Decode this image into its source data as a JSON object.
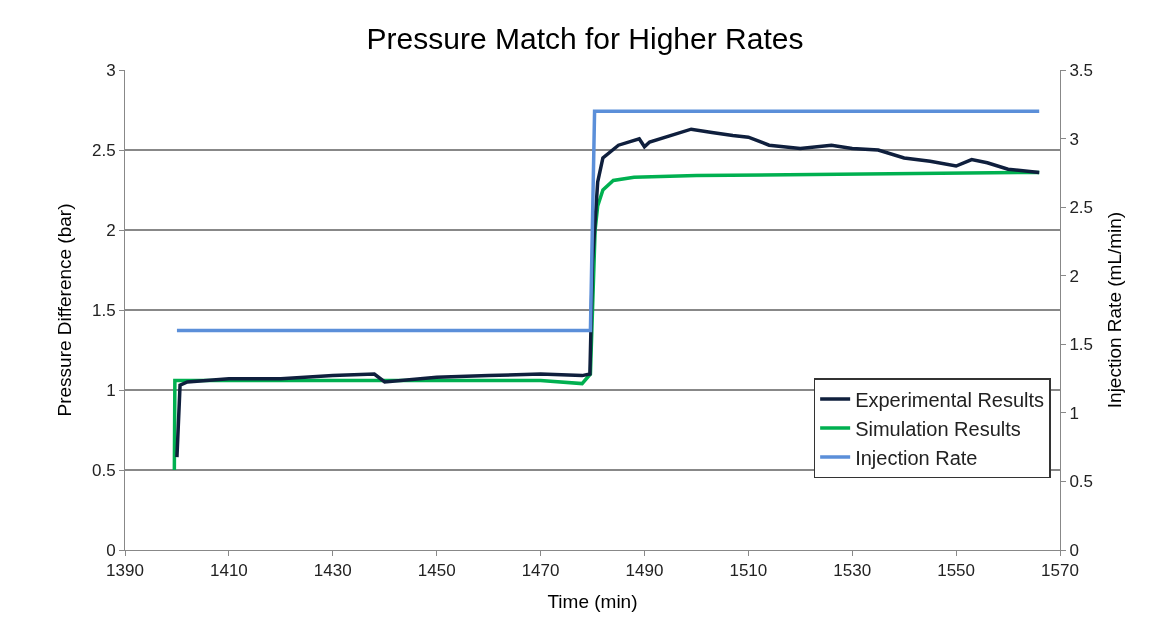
{
  "chart_data": {
    "type": "line",
    "title": "Pressure Match for Higher Rates",
    "xlabel": "Time (min)",
    "ylabel": "Pressure Difference (bar)",
    "y2label": "Injection Rate (mL/min)",
    "series": [
      {
        "name": "Experimental Results",
        "color": "#0f1f3d",
        "x": [
          1400,
          1400.6,
          1402,
          1410,
          1420,
          1430,
          1438,
          1440,
          1450,
          1460,
          1470,
          1478,
          1479.5,
          1480,
          1481,
          1482,
          1485,
          1489,
          1490,
          1491,
          1495,
          1499,
          1503,
          1507,
          1510,
          1514,
          1520,
          1526,
          1530,
          1535,
          1540,
          1545,
          1550,
          1553,
          1556,
          1560,
          1566
        ],
        "values": [
          0.58,
          1.03,
          1.05,
          1.07,
          1.07,
          1.09,
          1.1,
          1.05,
          1.08,
          1.09,
          1.1,
          1.09,
          1.1,
          1.8,
          2.3,
          2.45,
          2.53,
          2.57,
          2.52,
          2.55,
          2.59,
          2.63,
          2.61,
          2.59,
          2.58,
          2.53,
          2.51,
          2.53,
          2.51,
          2.5,
          2.45,
          2.43,
          2.4,
          2.44,
          2.42,
          2.38,
          2.36
        ]
      },
      {
        "name": "Simulation Results",
        "color": "#00b050",
        "x": [
          1399.5,
          1399.6,
          1410,
          1440,
          1470,
          1478,
          1479.6,
          1480,
          1480.5,
          1481,
          1482,
          1484,
          1488,
          1500,
          1566
        ],
        "values": [
          0.5,
          1.06,
          1.06,
          1.06,
          1.06,
          1.04,
          1.1,
          1.5,
          2.0,
          2.15,
          2.25,
          2.31,
          2.33,
          2.34,
          2.36
        ]
      },
      {
        "name": "Injection Rate",
        "color": "#5b8fd9",
        "axis": "y2",
        "x": [
          1400,
          1479.6,
          1480.4,
          1566
        ],
        "values": [
          1.6,
          1.6,
          3.2,
          3.2
        ]
      }
    ],
    "xlim": [
      1390,
      1570
    ],
    "xticks": [
      1390,
      1410,
      1430,
      1450,
      1470,
      1490,
      1510,
      1530,
      1550,
      1570
    ],
    "ylim": [
      0,
      3
    ],
    "yticks": [
      0,
      0.5,
      1,
      1.5,
      2,
      2.5,
      3
    ],
    "y2lim": [
      0,
      3.5
    ],
    "y2ticks": [
      0,
      0.5,
      1,
      1.5,
      2,
      2.5,
      3,
      3.5
    ],
    "grid": "y",
    "legend": "bottom right",
    "marker": "none",
    "line_style": "solid"
  }
}
